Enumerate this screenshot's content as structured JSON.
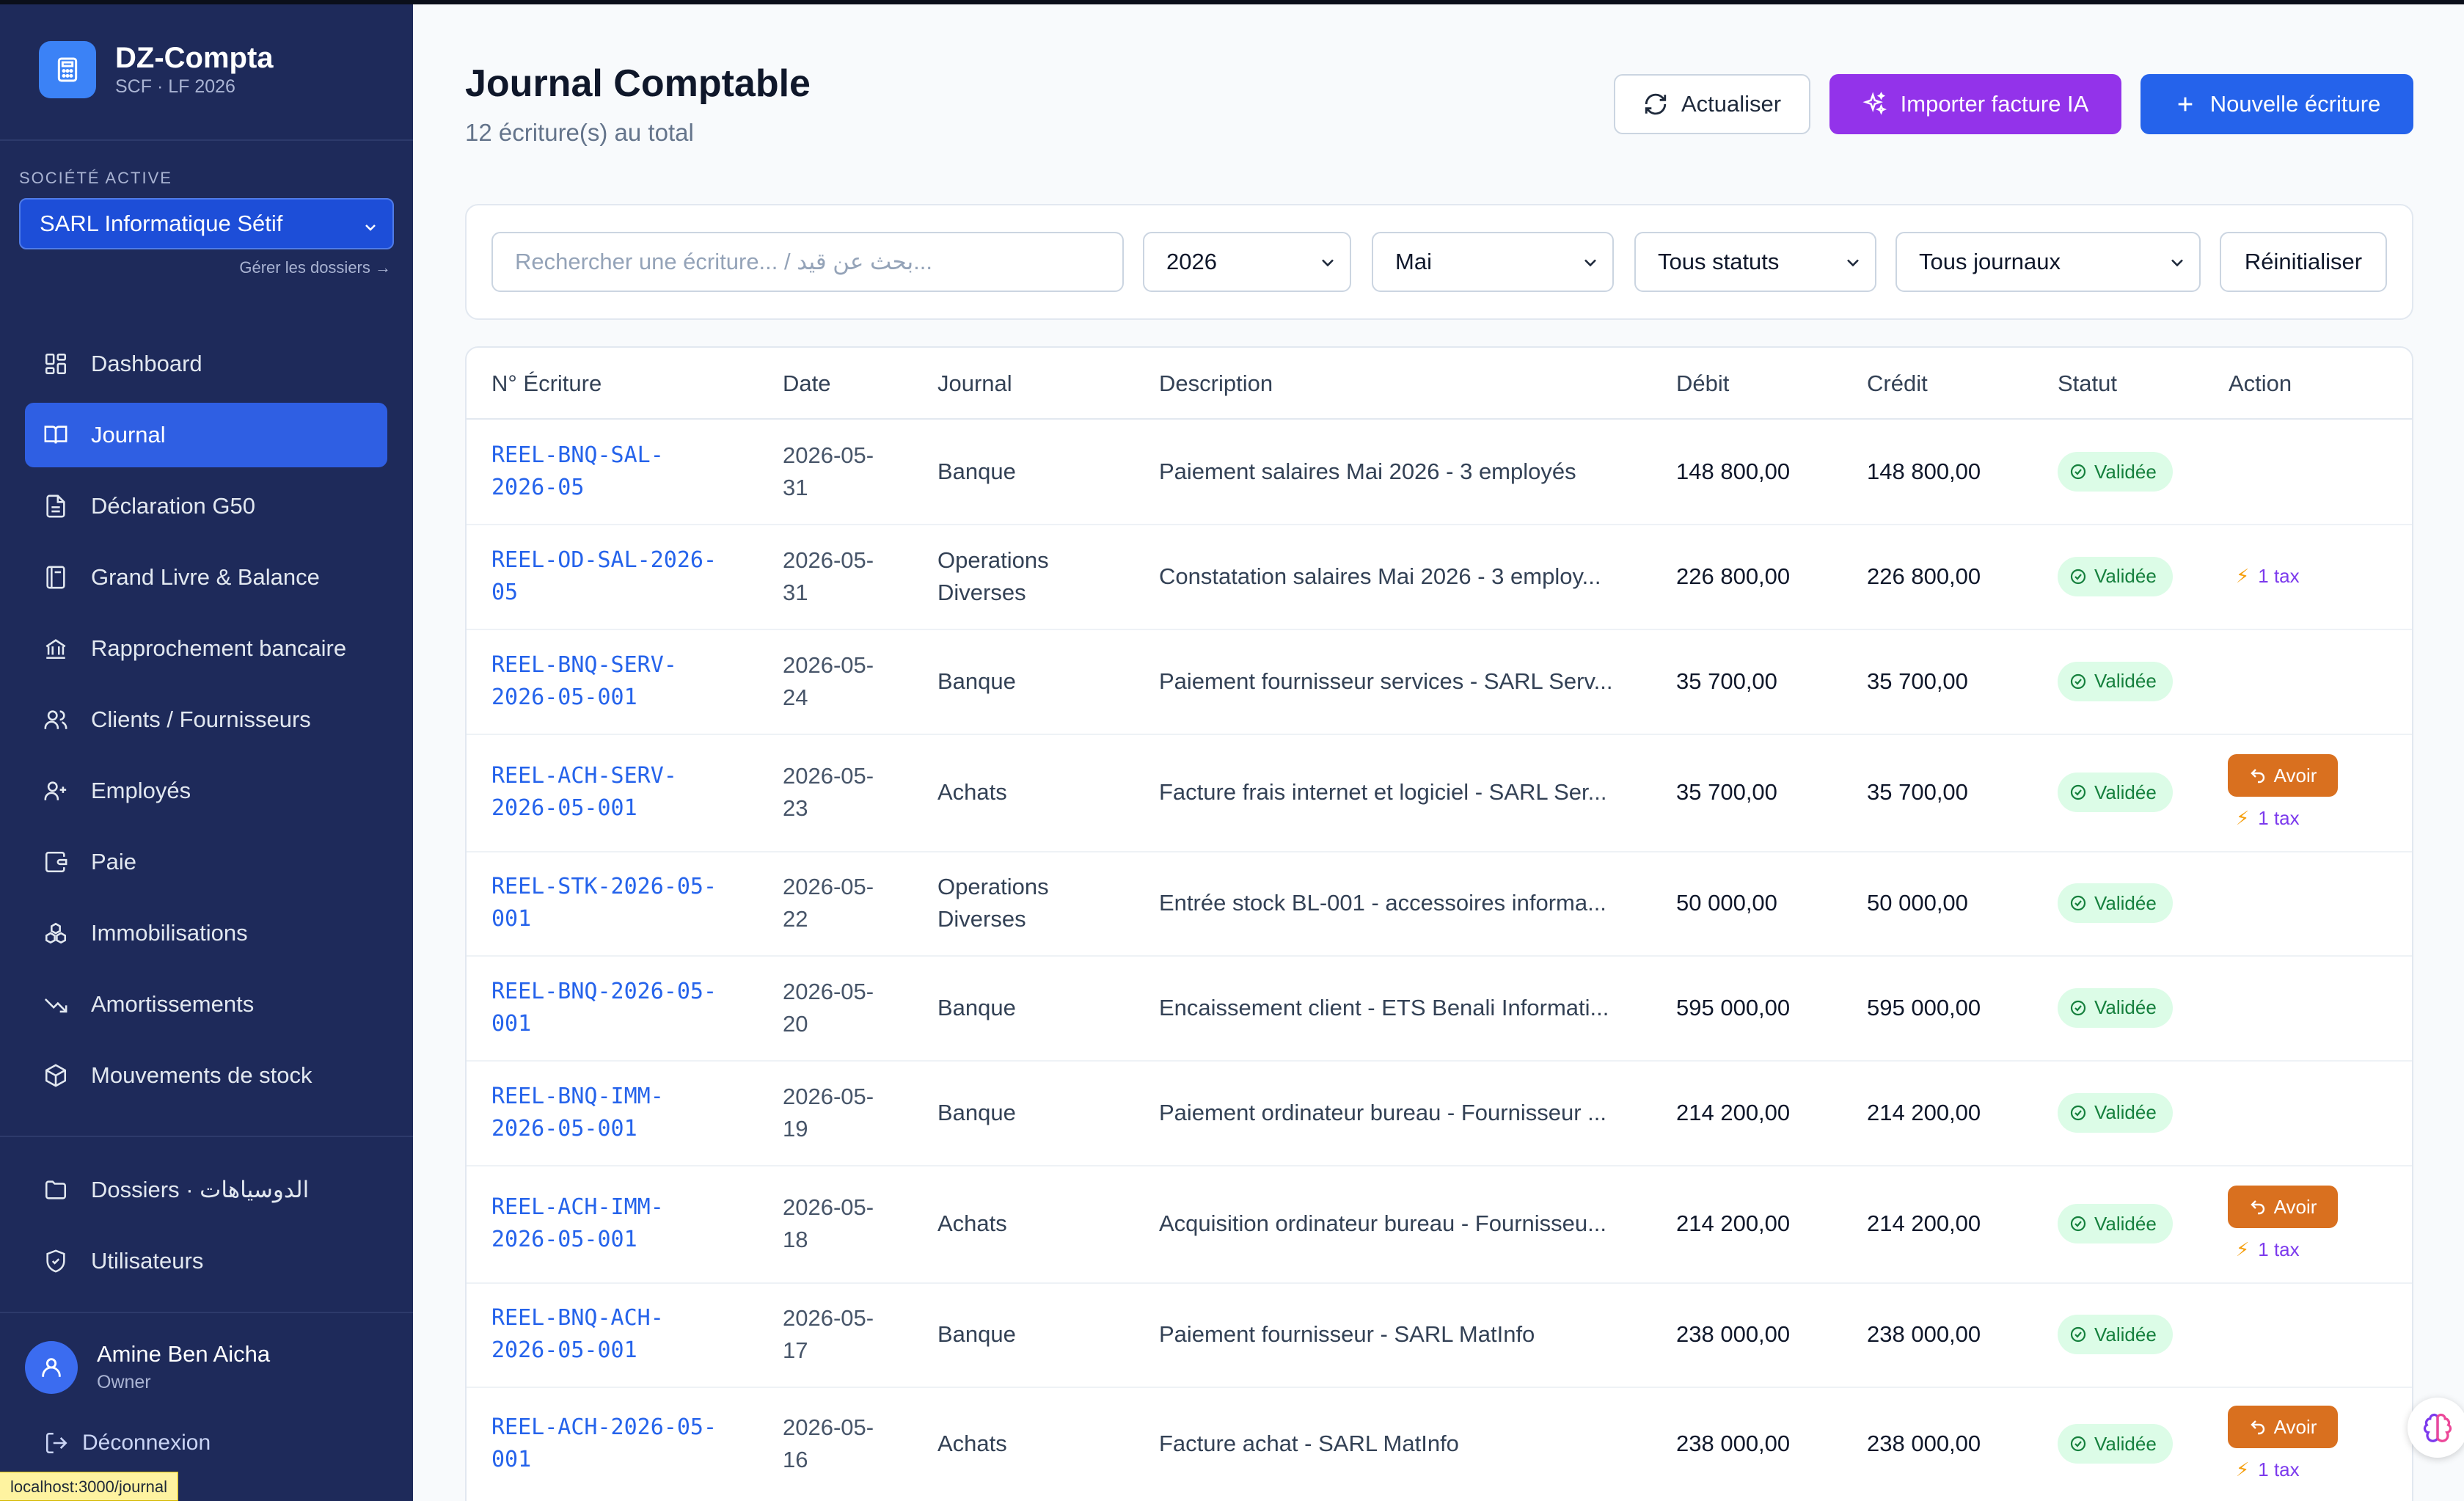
{
  "sidebar": {
    "brand_name": "DZ-Compta",
    "brand_sub": "SCF · LF 2026",
    "company_label": "SOCIÉTÉ ACTIVE",
    "company_selected": "SARL Informatique Sétif",
    "manage_label": "Gérer les dossiers →",
    "items": [
      {
        "label": "Dashboard",
        "icon": "grid-icon"
      },
      {
        "label": "Journal",
        "icon": "book-open-icon",
        "active": true
      },
      {
        "label": "Déclaration G50",
        "icon": "file-text-icon"
      },
      {
        "label": "Grand Livre & Balance",
        "icon": "ledger-icon"
      },
      {
        "label": "Rapprochement bancaire",
        "icon": "bank-icon"
      },
      {
        "label": "Clients / Fournisseurs",
        "icon": "users-icon"
      },
      {
        "label": "Employés",
        "icon": "user-plus-icon"
      },
      {
        "label": "Paie",
        "icon": "wallet-icon"
      },
      {
        "label": "Immobilisations",
        "icon": "boxes-icon"
      },
      {
        "label": "Amortissements",
        "icon": "trending-down-icon"
      },
      {
        "label": "Mouvements de stock",
        "icon": "package-icon"
      }
    ],
    "bottom_items": [
      {
        "label": "Dossiers · الدوسياهات",
        "icon": "folder-icon"
      },
      {
        "label": "Utilisateurs",
        "icon": "shield-icon"
      }
    ],
    "user": {
      "name": "Amine Ben Aicha",
      "role": "Owner"
    },
    "logout_label": "Déconnexion",
    "status_url": "localhost:3000/journal"
  },
  "header": {
    "title": "Journal Comptable",
    "subtitle": "12 écriture(s) au total",
    "refresh_label": "Actualiser",
    "import_label": "Importer facture IA",
    "new_label": "Nouvelle écriture"
  },
  "filters": {
    "search_placeholder": "Rechercher une écriture... / بحث عن قيد...",
    "year": "2026",
    "month": "Mai",
    "status": "Tous statuts",
    "journal": "Tous journaux",
    "reset_label": "Réinitialiser"
  },
  "table": {
    "headers": [
      "N° Écriture",
      "Date",
      "Journal",
      "Description",
      "Débit",
      "Crédit",
      "Statut",
      "Action"
    ],
    "rows": [
      {
        "ref1": "REEL-BNQ-SAL-",
        "ref2": "2026-05",
        "date1": "2026-05-",
        "date2": "31",
        "journal1": "Banque",
        "journal2": "",
        "desc": "Paiement salaires Mai 2026 - 3 employés",
        "debit": "148 800,00",
        "credit": "148 800,00",
        "status": "Validée",
        "avoir": "",
        "tax": ""
      },
      {
        "ref1": "REEL-OD-SAL-2026-",
        "ref2": "05",
        "date1": "2026-05-",
        "date2": "31",
        "journal1": "Operations",
        "journal2": "Diverses",
        "desc": "Constatation salaires Mai 2026 - 3 employ...",
        "debit": "226 800,00",
        "credit": "226 800,00",
        "status": "Validée",
        "avoir": "",
        "tax": "1 tax"
      },
      {
        "ref1": "REEL-BNQ-SERV-",
        "ref2": "2026-05-001",
        "date1": "2026-05-",
        "date2": "24",
        "journal1": "Banque",
        "journal2": "",
        "desc": "Paiement fournisseur services - SARL Serv...",
        "debit": "35 700,00",
        "credit": "35 700,00",
        "status": "Validée",
        "avoir": "",
        "tax": ""
      },
      {
        "ref1": "REEL-ACH-SERV-",
        "ref2": "2026-05-001",
        "date1": "2026-05-",
        "date2": "23",
        "journal1": "Achats",
        "journal2": "",
        "desc": "Facture frais internet et logiciel - SARL Ser...",
        "debit": "35 700,00",
        "credit": "35 700,00",
        "status": "Validée",
        "avoir": "Avoir",
        "tax": "1 tax"
      },
      {
        "ref1": "REEL-STK-2026-05-",
        "ref2": "001",
        "date1": "2026-05-",
        "date2": "22",
        "journal1": "Operations",
        "journal2": "Diverses",
        "desc": "Entrée stock BL-001 - accessoires informa...",
        "debit": "50 000,00",
        "credit": "50 000,00",
        "status": "Validée",
        "avoir": "",
        "tax": ""
      },
      {
        "ref1": "REEL-BNQ-2026-05-",
        "ref2": "001",
        "date1": "2026-05-",
        "date2": "20",
        "journal1": "Banque",
        "journal2": "",
        "desc": "Encaissement client - ETS Benali Informati...",
        "debit": "595 000,00",
        "credit": "595 000,00",
        "status": "Validée",
        "avoir": "",
        "tax": ""
      },
      {
        "ref1": "REEL-BNQ-IMM-",
        "ref2": "2026-05-001",
        "date1": "2026-05-",
        "date2": "19",
        "journal1": "Banque",
        "journal2": "",
        "desc": "Paiement ordinateur bureau - Fournisseur ...",
        "debit": "214 200,00",
        "credit": "214 200,00",
        "status": "Validée",
        "avoir": "",
        "tax": ""
      },
      {
        "ref1": "REEL-ACH-IMM-",
        "ref2": "2026-05-001",
        "date1": "2026-05-",
        "date2": "18",
        "journal1": "Achats",
        "journal2": "",
        "desc": "Acquisition ordinateur bureau - Fournisseu...",
        "debit": "214 200,00",
        "credit": "214 200,00",
        "status": "Validée",
        "avoir": "Avoir",
        "tax": "1 tax"
      },
      {
        "ref1": "REEL-BNQ-ACH-",
        "ref2": "2026-05-001",
        "date1": "2026-05-",
        "date2": "17",
        "journal1": "Banque",
        "journal2": "",
        "desc": "Paiement fournisseur - SARL MatInfo",
        "debit": "238 000,00",
        "credit": "238 000,00",
        "status": "Validée",
        "avoir": "",
        "tax": ""
      },
      {
        "ref1": "REEL-ACH-2026-05-",
        "ref2": "001",
        "date1": "2026-05-",
        "date2": "16",
        "journal1": "Achats",
        "journal2": "",
        "desc": "Facture achat - SARL MatInfo",
        "debit": "238 000,00",
        "credit": "238 000,00",
        "status": "Validée",
        "avoir": "Avoir",
        "tax": "1 tax"
      }
    ]
  },
  "colors": {
    "sidebar_bg": "#1e2a5a",
    "active_item": "#2f5fe3",
    "import_button": "#9333ea",
    "primary_button": "#2563eb",
    "valid_badge_bg": "#dcfce7",
    "valid_badge_text": "#15803d",
    "avoir_button": "#d9701f",
    "tax_text": "#7c3aed"
  }
}
